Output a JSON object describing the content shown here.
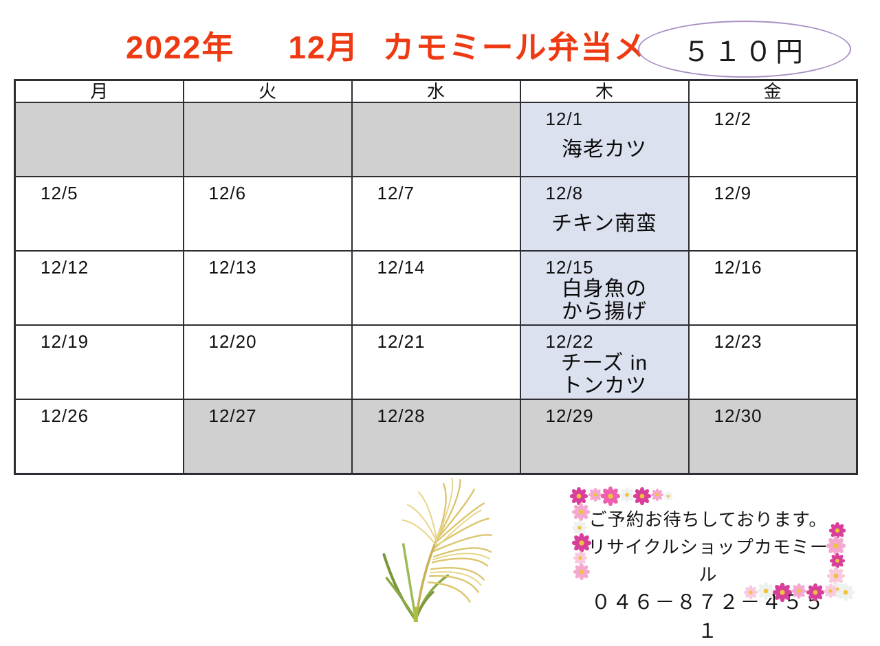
{
  "title": {
    "year": "2022年",
    "month": "12月",
    "name": "カモミール弁当メニュー"
  },
  "price_badge": {
    "label": "５１０円"
  },
  "calendar": {
    "day_headers": [
      "月",
      "火",
      "水",
      "木",
      "金"
    ],
    "rows": [
      {
        "cells": [
          {
            "date": "",
            "menu": "",
            "bg": "gray"
          },
          {
            "date": "",
            "menu": "",
            "bg": "gray"
          },
          {
            "date": "",
            "menu": "",
            "bg": "gray"
          },
          {
            "date": "12/1",
            "menu": "海老カツ",
            "bg": "blue"
          },
          {
            "date": "12/2",
            "menu": "",
            "bg": "white"
          }
        ]
      },
      {
        "cells": [
          {
            "date": "12/5",
            "menu": "",
            "bg": "white"
          },
          {
            "date": "12/6",
            "menu": "",
            "bg": "white"
          },
          {
            "date": "12/7",
            "menu": "",
            "bg": "white"
          },
          {
            "date": "12/8",
            "menu": "チキン南蛮",
            "bg": "blue"
          },
          {
            "date": "12/9",
            "menu": "",
            "bg": "white"
          }
        ]
      },
      {
        "cells": [
          {
            "date": "12/12",
            "menu": "",
            "bg": "white"
          },
          {
            "date": "12/13",
            "menu": "",
            "bg": "white"
          },
          {
            "date": "12/14",
            "menu": "",
            "bg": "white"
          },
          {
            "date": "12/15",
            "menu": "白身魚の\nから揚げ",
            "bg": "blue"
          },
          {
            "date": "12/16",
            "menu": "",
            "bg": "white"
          }
        ]
      },
      {
        "cells": [
          {
            "date": "12/19",
            "menu": "",
            "bg": "white"
          },
          {
            "date": "12/20",
            "menu": "",
            "bg": "white"
          },
          {
            "date": "12/21",
            "menu": "",
            "bg": "white"
          },
          {
            "date": "12/22",
            "menu": "チーズ in\nトンカツ",
            "bg": "blue"
          },
          {
            "date": "12/23",
            "menu": "",
            "bg": "white"
          }
        ]
      },
      {
        "cells": [
          {
            "date": "12/26",
            "menu": "",
            "bg": "white"
          },
          {
            "date": "12/27",
            "menu": "",
            "bg": "gray"
          },
          {
            "date": "12/28",
            "menu": "",
            "bg": "gray"
          },
          {
            "date": "12/29",
            "menu": "",
            "bg": "gray"
          },
          {
            "date": "12/30",
            "menu": "",
            "bg": "gray"
          }
        ]
      }
    ]
  },
  "footer": {
    "line1": "ご予約お待ちしております。",
    "line2": "リサイクルショップカモミール",
    "line3": "０４６－８７２－４５５１"
  },
  "icons": {
    "pampas": "pampas-grass-icon",
    "flower": "flower-icon"
  },
  "colors": {
    "title_red": "#ee3a12",
    "oval_purple": "#a98fc4",
    "border_dark": "#2d2d33",
    "cell_gray": "#d0d0d0",
    "cell_blue": "#dce1f0",
    "flower_deep_pink": "#d83f9a",
    "flower_mid_pink": "#ee5fae",
    "flower_light_pink": "#f4a8cf",
    "flower_pale_pink": "#f9c9dd",
    "flower_white": "#eef2ef",
    "flower_center_yellow": "#f0c33c",
    "pampas_tan": "#dcc56e",
    "pampas_green": "#8aa844"
  }
}
